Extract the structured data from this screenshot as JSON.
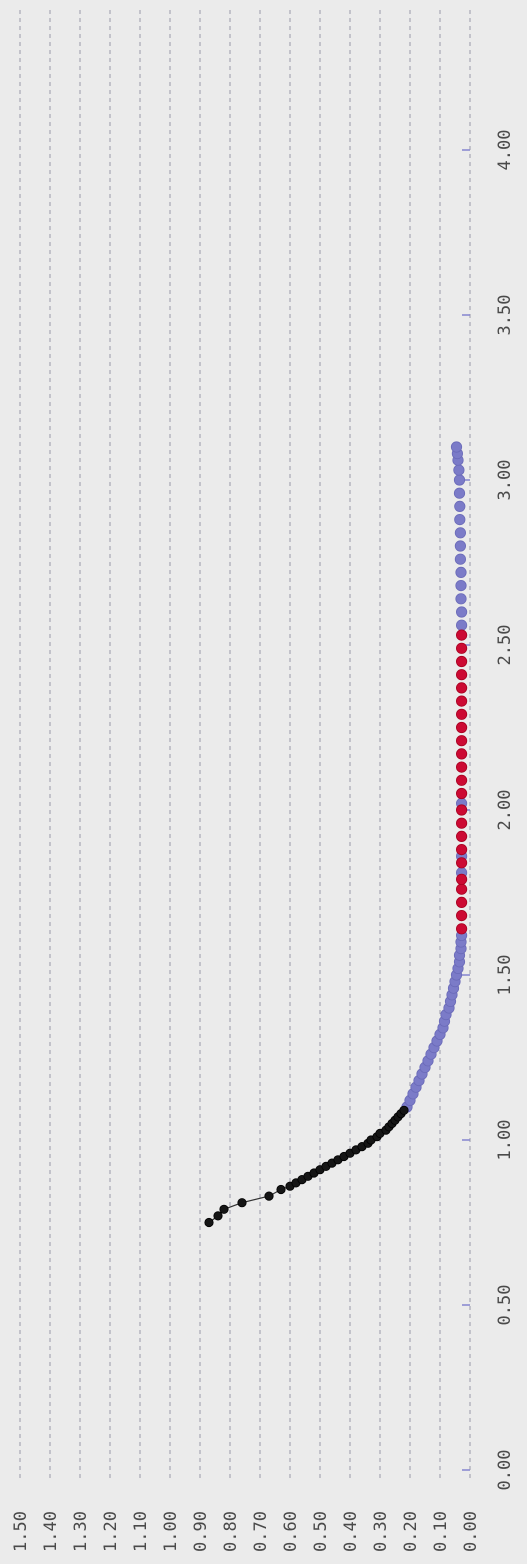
{
  "chart_data": {
    "type": "scatter",
    "title": "",
    "xlabel": "",
    "ylabel": "",
    "rotated": "90deg-clockwise",
    "grid": "horizontal-dashed",
    "xlim": [
      0,
      4.25
    ],
    "ylim": [
      0,
      1.5
    ],
    "x_ticks": [
      "0.00",
      "0.50",
      "1.00",
      "1.50",
      "2.00",
      "2.50",
      "3.00",
      "3.50",
      "4.00"
    ],
    "y_ticks": [
      "0.00",
      "0.10",
      "0.20",
      "0.30",
      "0.40",
      "0.50",
      "0.60",
      "0.70",
      "0.80",
      "0.90",
      "1.00",
      "1.10",
      "1.20",
      "1.30",
      "1.40",
      "1.50"
    ],
    "colors": {
      "black": "#151515",
      "blue": "#7b7bc8",
      "red": "#cc0a33",
      "background": "#ebebeb"
    },
    "series": [
      {
        "color": "black",
        "points": [
          [
            0.75,
            0.87
          ],
          [
            0.77,
            0.84
          ],
          [
            0.79,
            0.82
          ],
          [
            0.81,
            0.76
          ],
          [
            0.83,
            0.67
          ],
          [
            0.85,
            0.63
          ],
          [
            0.86,
            0.6
          ],
          [
            0.87,
            0.58
          ],
          [
            0.88,
            0.56
          ],
          [
            0.89,
            0.54
          ],
          [
            0.9,
            0.52
          ],
          [
            0.91,
            0.5
          ],
          [
            0.92,
            0.48
          ],
          [
            0.93,
            0.46
          ],
          [
            0.94,
            0.44
          ],
          [
            0.95,
            0.42
          ],
          [
            0.96,
            0.4
          ],
          [
            0.97,
            0.38
          ],
          [
            0.98,
            0.36
          ],
          [
            0.99,
            0.34
          ],
          [
            1.0,
            0.33
          ],
          [
            1.01,
            0.31
          ],
          [
            1.02,
            0.3
          ],
          [
            1.03,
            0.28
          ],
          [
            1.04,
            0.27
          ],
          [
            1.05,
            0.26
          ],
          [
            1.06,
            0.25
          ],
          [
            1.07,
            0.24
          ],
          [
            1.08,
            0.23
          ],
          [
            1.09,
            0.22
          ]
        ]
      },
      {
        "color": "blue",
        "points": [
          [
            1.1,
            0.21
          ],
          [
            1.12,
            0.2
          ],
          [
            1.14,
            0.19
          ],
          [
            1.16,
            0.18
          ],
          [
            1.18,
            0.17
          ],
          [
            1.2,
            0.16
          ],
          [
            1.22,
            0.15
          ],
          [
            1.24,
            0.14
          ],
          [
            1.26,
            0.13
          ],
          [
            1.28,
            0.12
          ],
          [
            1.3,
            0.11
          ],
          [
            1.32,
            0.1
          ],
          [
            1.34,
            0.09
          ],
          [
            1.36,
            0.085
          ],
          [
            1.38,
            0.08
          ],
          [
            1.4,
            0.07
          ],
          [
            1.42,
            0.065
          ],
          [
            1.44,
            0.06
          ],
          [
            1.46,
            0.055
          ],
          [
            1.48,
            0.05
          ],
          [
            1.5,
            0.045
          ],
          [
            1.52,
            0.04
          ],
          [
            1.54,
            0.035
          ],
          [
            1.56,
            0.035
          ],
          [
            1.58,
            0.03
          ],
          [
            1.6,
            0.03
          ],
          [
            1.62,
            0.028
          ],
          [
            1.81,
            0.028
          ],
          [
            1.86,
            0.028
          ],
          [
            2.02,
            0.028
          ],
          [
            2.56,
            0.028
          ],
          [
            2.6,
            0.028
          ],
          [
            2.64,
            0.03
          ],
          [
            2.68,
            0.03
          ],
          [
            2.72,
            0.03
          ],
          [
            2.76,
            0.032
          ],
          [
            2.8,
            0.032
          ],
          [
            2.84,
            0.032
          ],
          [
            2.88,
            0.034
          ],
          [
            2.92,
            0.034
          ],
          [
            2.96,
            0.035
          ],
          [
            3.0,
            0.035
          ],
          [
            3.03,
            0.037
          ],
          [
            3.06,
            0.04
          ],
          [
            3.08,
            0.042
          ],
          [
            3.1,
            0.045
          ]
        ]
      },
      {
        "color": "red",
        "points": [
          [
            1.64,
            0.028
          ],
          [
            1.68,
            0.028
          ],
          [
            1.72,
            0.028
          ],
          [
            1.76,
            0.028
          ],
          [
            1.79,
            0.028
          ],
          [
            1.84,
            0.028
          ],
          [
            1.88,
            0.028
          ],
          [
            1.92,
            0.028
          ],
          [
            1.96,
            0.028
          ],
          [
            2.0,
            0.028
          ],
          [
            2.05,
            0.028
          ],
          [
            2.09,
            0.028
          ],
          [
            2.13,
            0.028
          ],
          [
            2.17,
            0.028
          ],
          [
            2.21,
            0.028
          ],
          [
            2.25,
            0.028
          ],
          [
            2.29,
            0.028
          ],
          [
            2.33,
            0.028
          ],
          [
            2.37,
            0.028
          ],
          [
            2.41,
            0.028
          ],
          [
            2.45,
            0.028
          ],
          [
            2.49,
            0.028
          ],
          [
            2.53,
            0.028
          ]
        ]
      }
    ]
  }
}
